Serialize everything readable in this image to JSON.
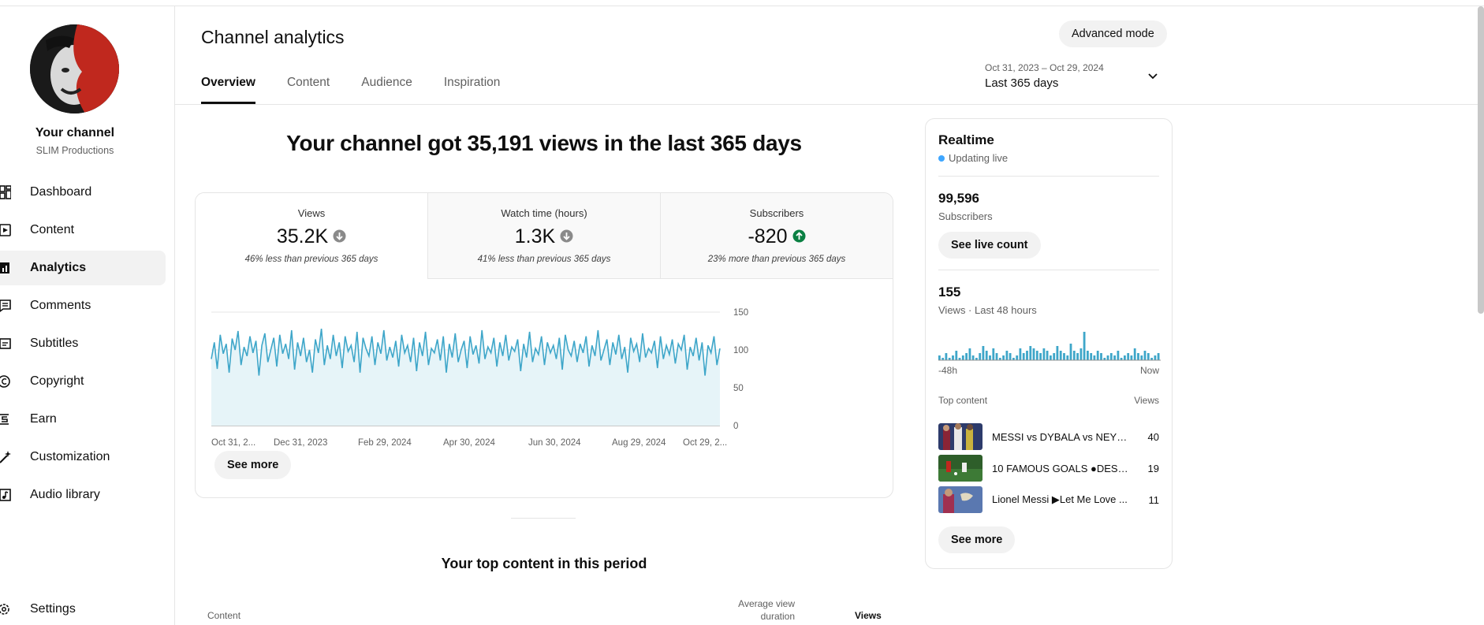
{
  "sidebar": {
    "channel_name": "Your channel",
    "channel_sub": "SLIM Productions",
    "items": [
      {
        "label": "Dashboard",
        "icon": "dashboard-icon"
      },
      {
        "label": "Content",
        "icon": "content-icon"
      },
      {
        "label": "Analytics",
        "icon": "analytics-icon",
        "active": true
      },
      {
        "label": "Comments",
        "icon": "comments-icon"
      },
      {
        "label": "Subtitles",
        "icon": "subtitles-icon"
      },
      {
        "label": "Copyright",
        "icon": "copyright-icon"
      },
      {
        "label": "Earn",
        "icon": "earn-icon"
      },
      {
        "label": "Customization",
        "icon": "customization-icon"
      },
      {
        "label": "Audio library",
        "icon": "audio-library-icon"
      }
    ],
    "settings_label": "Settings"
  },
  "header": {
    "title": "Channel analytics",
    "advanced_mode": "Advanced mode",
    "tabs": [
      "Overview",
      "Content",
      "Audience",
      "Inspiration"
    ],
    "date_range": "Oct 31, 2023 – Oct 29, 2024",
    "date_label": "Last 365 days"
  },
  "overview": {
    "headline": "Your channel got 35,191 views in the last 365 days",
    "metrics": [
      {
        "label": "Views",
        "value": "35.2K",
        "direction": "down",
        "note": "46% less than previous 365 days"
      },
      {
        "label": "Watch time (hours)",
        "value": "1.3K",
        "direction": "down",
        "note": "41% less than previous 365 days"
      },
      {
        "label": "Subscribers",
        "value": "-820",
        "direction": "up",
        "note": "23% more than previous 365 days"
      }
    ],
    "see_more": "See more"
  },
  "chart_data": {
    "type": "area",
    "series": [
      {
        "values": [
          88,
          110,
          75,
          120,
          95,
          108,
          70,
          115,
          100,
          125,
          80,
          104,
          92,
          118,
          96,
          112,
          66,
          106,
          122,
          84,
          100,
          116,
          78,
          120,
          95,
          108,
          88,
          126,
          74,
          110,
          92,
          116,
          84,
          100,
          70,
          114,
          96,
          128,
          80,
          106,
          88,
          120,
          92,
          110,
          76,
          118,
          98,
          106,
          84,
          124,
          70,
          116,
          102,
          92,
          118,
          80,
          110,
          95,
          126,
          86,
          104,
          90,
          112,
          78,
          120,
          96,
          106,
          84,
          116,
          72,
          110,
          92,
          124,
          80,
          102,
          96,
          114,
          86,
          118,
          70,
          108,
          90,
          122,
          84,
          100,
          112,
          76,
          118,
          94,
          106,
          82,
          126,
          88,
          104,
          96,
          116,
          78,
          110,
          92,
          120,
          86,
          104,
          98,
          114,
          72,
          108,
          90,
          124,
          84,
          102,
          94,
          118,
          80,
          110,
          96,
          106,
          88,
          116,
          74,
          120,
          100,
          92,
          112,
          84,
          108,
          96,
          118,
          78,
          106,
          92,
          126,
          86,
          100,
          114,
          80,
          110,
          94,
          120,
          88,
          104,
          70,
          116,
          98,
          108,
          84,
          122,
          90,
          102,
          96,
          112,
          76,
          118,
          88,
          106,
          94,
          114,
          82,
          108,
          100,
          120,
          74,
          104,
          92,
          116,
          86,
          110,
          66,
          106,
          96,
          118,
          80,
          102
        ]
      }
    ],
    "x_tick_labels": [
      "Oct 31, 2...",
      "Dec 31, 2023",
      "Feb 29, 2024",
      "Apr 30, 2024",
      "Jun 30, 2024",
      "Aug 29, 2024",
      "Oct 29, 2..."
    ],
    "y_ticks": [
      0,
      50,
      100,
      150
    ],
    "ylim": [
      0,
      150
    ],
    "color": "#3ea6c9",
    "fill": "#e6f4f8"
  },
  "realtime": {
    "title": "Realtime",
    "live_label": "Updating live",
    "subscribers_value": "99,596",
    "subscribers_label": "Subscribers",
    "see_live_count": "See live count",
    "views_value": "155",
    "views_label": "Views · Last 48 hours",
    "bars": [
      2,
      1,
      3,
      1,
      2,
      4,
      1,
      2,
      3,
      5,
      2,
      1,
      3,
      6,
      4,
      2,
      5,
      3,
      1,
      2,
      4,
      3,
      1,
      2,
      5,
      3,
      4,
      6,
      5,
      4,
      3,
      5,
      4,
      2,
      3,
      6,
      4,
      3,
      2,
      7,
      4,
      3,
      5,
      12,
      4,
      3,
      2,
      4,
      3,
      1,
      2,
      3,
      2,
      4,
      1,
      2,
      3,
      2,
      5,
      3,
      2,
      4,
      3,
      1,
      2,
      3
    ],
    "axis_left": "-48h",
    "axis_right": "Now",
    "top_content_label": "Top content",
    "views_col": "Views",
    "top_content": [
      {
        "title": "MESSI vs DYBALA vs NEYM...",
        "views": "40"
      },
      {
        "title": "10 FAMOUS GOALS ●DESPA...",
        "views": "19"
      },
      {
        "title": "Lionel Messi ▶Let Me Love ...",
        "views": "11"
      }
    ],
    "see_more": "See more"
  },
  "top_content_section": {
    "title": "Your top content in this period",
    "col_content": "Content",
    "col_avg": "Average view duration",
    "col_views": "Views"
  }
}
